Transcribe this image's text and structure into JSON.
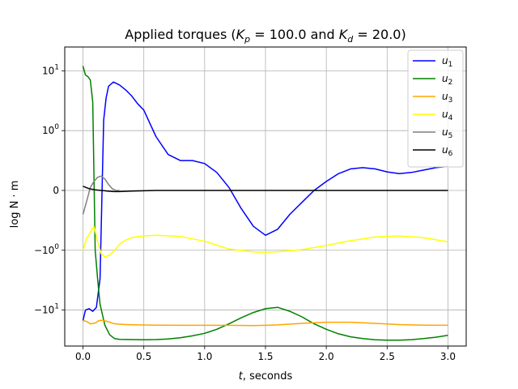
{
  "chart_data": {
    "type": "line",
    "title": "Applied torques (K_p = 100.0 and K_d = 20.0)",
    "title_parts": {
      "prefix": "Applied torques (",
      "kp_symbol": "K",
      "kp_sub": "p",
      "kp_value": " = 100.0 and ",
      "kd_symbol": "K",
      "kd_sub": "d",
      "kd_value": " = 20.0)"
    },
    "xlabel_parts": {
      "var": "t",
      "rest": ", seconds"
    },
    "ylabel": "log N · m",
    "xlim": [
      -0.15,
      3.15
    ],
    "xticks": [
      0.0,
      0.5,
      1.0,
      1.5,
      2.0,
      2.5,
      3.0
    ],
    "xtick_labels": [
      "0.0",
      "0.5",
      "1.0",
      "1.5",
      "2.0",
      "2.5",
      "3.0"
    ],
    "yscale": "symlog",
    "yscale_linthresh": 1,
    "ylim": [
      -40,
      25
    ],
    "yticks": [
      10,
      1,
      0,
      -1,
      -10
    ],
    "ytick_labels": [
      {
        "base": "10",
        "exp": "1"
      },
      {
        "base": "10",
        "exp": "0"
      },
      {
        "base": "0",
        "exp": ""
      },
      {
        "base": "−10",
        "exp": "0"
      },
      {
        "base": "−10",
        "exp": "1"
      }
    ],
    "grid": true,
    "legend_position": "top-right",
    "series": [
      {
        "name": "u1",
        "label_main": "u",
        "label_sub": "1",
        "color": "#0000ff",
        "x": [
          0,
          0.02,
          0.05,
          0.08,
          0.11,
          0.14,
          0.17,
          0.19,
          0.21,
          0.25,
          0.3,
          0.35,
          0.4,
          0.45,
          0.5,
          0.6,
          0.7,
          0.8,
          0.9,
          1.0,
          1.1,
          1.2,
          1.3,
          1.4,
          1.5,
          1.6,
          1.7,
          1.8,
          1.9,
          2.0,
          2.1,
          2.2,
          2.3,
          2.4,
          2.5,
          2.6,
          2.7,
          2.8,
          2.9,
          3.0
        ],
        "y": [
          -15,
          -10,
          -9.5,
          -10.5,
          -9,
          -3,
          1.5,
          3.5,
          5.5,
          6.5,
          5.8,
          4.8,
          3.8,
          2.8,
          2.2,
          0.9,
          0.6,
          0.5,
          0.5,
          0.45,
          0.3,
          0.05,
          -0.3,
          -0.6,
          -0.75,
          -0.65,
          -0.4,
          -0.2,
          0.0,
          0.15,
          0.28,
          0.36,
          0.38,
          0.36,
          0.31,
          0.28,
          0.3,
          0.34,
          0.38,
          0.4
        ]
      },
      {
        "name": "u2",
        "label_main": "u",
        "label_sub": "2",
        "color": "#008000",
        "x": [
          0,
          0.02,
          0.04,
          0.06,
          0.08,
          0.1,
          0.12,
          0.14,
          0.18,
          0.22,
          0.26,
          0.3,
          0.4,
          0.5,
          0.6,
          0.7,
          0.8,
          0.9,
          1.0,
          1.1,
          1.2,
          1.3,
          1.4,
          1.5,
          1.6,
          1.7,
          1.8,
          1.9,
          2.0,
          2.1,
          2.2,
          2.3,
          2.4,
          2.5,
          2.6,
          2.7,
          2.8,
          2.9,
          3.0
        ],
        "y": [
          12,
          8.5,
          8,
          7,
          3,
          -1,
          -3,
          -8,
          -18,
          -26,
          -30,
          -31,
          -31.2,
          -31.4,
          -31.2,
          -30.5,
          -29,
          -27,
          -24.5,
          -21,
          -17,
          -13.5,
          -11,
          -9.5,
          -9,
          -10.5,
          -13,
          -17,
          -21,
          -25,
          -28,
          -30,
          -31.5,
          -32,
          -32,
          -31.3,
          -30,
          -28.5,
          -26.5
        ]
      },
      {
        "name": "u3",
        "label_main": "u",
        "label_sub": "3",
        "color": "#ffa500",
        "x": [
          0,
          0.03,
          0.06,
          0.1,
          0.13,
          0.16,
          0.2,
          0.25,
          0.3,
          0.4,
          0.5,
          0.6,
          0.8,
          1.0,
          1.2,
          1.4,
          1.5,
          1.6,
          1.8,
          2.0,
          2.2,
          2.4,
          2.6,
          2.8,
          3.0
        ],
        "y": [
          -15,
          -15.5,
          -17,
          -16.5,
          -15,
          -14.8,
          -15.5,
          -16.8,
          -17.3,
          -17.6,
          -17.8,
          -17.9,
          -18,
          -18,
          -18,
          -18.2,
          -18,
          -17.7,
          -16.7,
          -16,
          -16,
          -16.7,
          -17.5,
          -17.9,
          -18
        ]
      },
      {
        "name": "u4",
        "label_main": "u",
        "label_sub": "4",
        "color": "#ffff00",
        "x": [
          0,
          0.03,
          0.06,
          0.09,
          0.12,
          0.15,
          0.18,
          0.22,
          0.26,
          0.3,
          0.35,
          0.4,
          0.5,
          0.6,
          0.8,
          1.0,
          1.2,
          1.4,
          1.5,
          1.6,
          1.8,
          2.0,
          2.2,
          2.4,
          2.6,
          2.8,
          3.0
        ],
        "y": [
          -1.0,
          -0.8,
          -0.7,
          -0.6,
          -0.85,
          -1.15,
          -1.3,
          -1.2,
          -1.0,
          -0.9,
          -0.83,
          -0.79,
          -0.76,
          -0.75,
          -0.77,
          -0.85,
          -0.98,
          -1.07,
          -1.08,
          -1.06,
          -0.99,
          -0.92,
          -0.84,
          -0.78,
          -0.76,
          -0.79,
          -0.86
        ]
      },
      {
        "name": "u5",
        "label_main": "u",
        "label_sub": "5",
        "color": "#808080",
        "x": [
          0,
          0.03,
          0.06,
          0.09,
          0.12,
          0.15,
          0.18,
          0.21,
          0.24,
          0.27,
          0.3
        ],
        "y": [
          -0.4,
          -0.18,
          0.05,
          0.15,
          0.22,
          0.24,
          0.19,
          0.1,
          0.03,
          0.0,
          0.0
        ]
      },
      {
        "name": "u6",
        "label_main": "u",
        "label_sub": "6",
        "color": "#000000",
        "x": [
          0,
          0.05,
          0.1,
          0.15,
          0.2,
          0.25,
          0.3,
          0.4,
          0.6,
          1.0,
          1.5,
          2.0,
          2.5,
          3.0
        ],
        "y": [
          0.07,
          0.03,
          0.01,
          0.0,
          -0.01,
          -0.02,
          -0.02,
          -0.01,
          0.0,
          0.0,
          0.0,
          0.0,
          0.0,
          0.0
        ]
      }
    ]
  }
}
